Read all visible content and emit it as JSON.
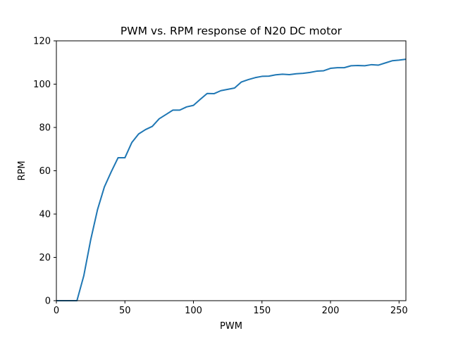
{
  "chart_data": {
    "type": "line",
    "title": "PWM vs. RPM response of N20 DC motor",
    "xlabel": "PWM",
    "ylabel": "RPM",
    "xlim": [
      0,
      255
    ],
    "ylim": [
      0,
      120
    ],
    "xticks": [
      "0",
      "50",
      "100",
      "150",
      "200",
      "250"
    ],
    "yticks": [
      "0",
      "20",
      "40",
      "60",
      "80",
      "100",
      "120"
    ],
    "grid": false,
    "series": [
      {
        "color": "#1f77b4",
        "x": [
          0,
          5,
          10,
          15,
          20,
          25,
          30,
          35,
          40,
          45,
          50,
          55,
          60,
          65,
          70,
          75,
          80,
          85,
          90,
          95,
          100,
          105,
          110,
          115,
          120,
          125,
          130,
          135,
          140,
          145,
          150,
          155,
          160,
          165,
          170,
          175,
          180,
          185,
          190,
          195,
          200,
          205,
          210,
          215,
          220,
          225,
          230,
          235,
          240,
          245,
          250,
          255
        ],
        "y": [
          0,
          0,
          0,
          0,
          11.5,
          28,
          42,
          52.5,
          59.5,
          66,
          66,
          73,
          77,
          79,
          80.5,
          84,
          86,
          88,
          88,
          89.5,
          90.2,
          93,
          95.7,
          95.6,
          97,
          97.6,
          98.2,
          101,
          102.1,
          103,
          103.6,
          103.7,
          104.3,
          104.6,
          104.4,
          104.8,
          105,
          105.4,
          106,
          106.2,
          107.3,
          107.6,
          107.6,
          108.5,
          108.6,
          108.5,
          109,
          108.8,
          109.8,
          110.8,
          111.1,
          111.5
        ]
      }
    ]
  }
}
